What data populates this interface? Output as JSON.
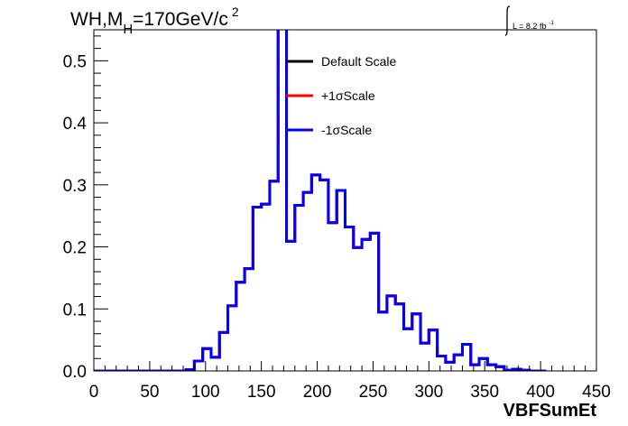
{
  "header": {
    "title_main": "WH,M",
    "title_sub": "H",
    "title_rest": "=170GeV/c",
    "title_sup": "2",
    "lumi_main": "L = 8.2 fb",
    "lumi_sup": "-1"
  },
  "chart_data": {
    "type": "line",
    "xlabel": "VBFSumEt",
    "ylabel": "",
    "xlim": [
      0,
      450
    ],
    "ylim": [
      0,
      0.55
    ],
    "x_ticks": [
      "0",
      "50",
      "100",
      "150",
      "200",
      "250",
      "300",
      "350",
      "400",
      "450"
    ],
    "y_ticks": [
      "0.0",
      "0.1",
      "0.2",
      "0.3",
      "0.4",
      "0.5"
    ],
    "bin_width": 7.5,
    "legend_position": "top-center",
    "series": [
      {
        "name": "Default Scale",
        "color": "#000000",
        "values": [
          0,
          0,
          0,
          0,
          0,
          0,
          0,
          0,
          0,
          0,
          0,
          0.002,
          0.016,
          0.036,
          0.022,
          0.062,
          0.105,
          0.143,
          0.165,
          0.264,
          0.269,
          0.306,
          0.58,
          0.209,
          0.267,
          0.288,
          0.316,
          0.308,
          0.239,
          0.291,
          0.232,
          0.199,
          0.212,
          0.222,
          0.095,
          0.121,
          0.108,
          0.068,
          0.092,
          0.045,
          0.066,
          0.024,
          0.014,
          0.026,
          0.043,
          0.01,
          0.02,
          0.01,
          0.007,
          0.001,
          0.003,
          0.001,
          0,
          0
        ]
      },
      {
        "name": "+1σScale",
        "color": "#ff0000",
        "values": [
          0,
          0,
          0,
          0,
          0,
          0,
          0,
          0,
          0,
          0,
          0,
          0.002,
          0.016,
          0.036,
          0.022,
          0.062,
          0.105,
          0.143,
          0.165,
          0.264,
          0.269,
          0.306,
          0.58,
          0.209,
          0.267,
          0.288,
          0.316,
          0.308,
          0.239,
          0.291,
          0.232,
          0.199,
          0.212,
          0.222,
          0.095,
          0.121,
          0.108,
          0.068,
          0.092,
          0.045,
          0.066,
          0.024,
          0.014,
          0.026,
          0.043,
          0.01,
          0.02,
          0.01,
          0.007,
          0.001,
          0.003,
          0.001,
          0,
          0
        ]
      },
      {
        "name": "-1σScale",
        "color": "#0000ff",
        "values": [
          0,
          0,
          0,
          0,
          0,
          0,
          0,
          0,
          0,
          0,
          0,
          0.002,
          0.016,
          0.036,
          0.022,
          0.062,
          0.105,
          0.143,
          0.165,
          0.264,
          0.269,
          0.306,
          0.58,
          0.209,
          0.267,
          0.288,
          0.316,
          0.308,
          0.239,
          0.291,
          0.232,
          0.199,
          0.212,
          0.222,
          0.095,
          0.121,
          0.108,
          0.068,
          0.092,
          0.045,
          0.066,
          0.024,
          0.014,
          0.026,
          0.043,
          0.01,
          0.02,
          0.01,
          0.007,
          0.001,
          0.003,
          0.001,
          0,
          0
        ]
      }
    ]
  }
}
